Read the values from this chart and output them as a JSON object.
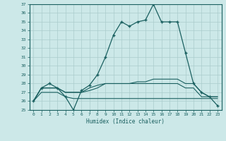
{
  "xlabel": "Humidex (Indice chaleur)",
  "bg_color": "#cce8e8",
  "grid_color": "#aacccc",
  "line_color": "#1a6060",
  "xlim": [
    -0.5,
    23.5
  ],
  "ylim": [
    25,
    37
  ],
  "xticks": [
    0,
    1,
    2,
    3,
    4,
    5,
    6,
    7,
    8,
    9,
    10,
    11,
    12,
    13,
    14,
    15,
    16,
    17,
    18,
    19,
    20,
    21,
    22,
    23
  ],
  "yticks": [
    25,
    26,
    27,
    28,
    29,
    30,
    31,
    32,
    33,
    34,
    35,
    36,
    37
  ],
  "series1": [
    26.0,
    27.5,
    28.0,
    27.5,
    26.5,
    25.0,
    27.2,
    27.8,
    29.0,
    31.0,
    33.5,
    35.0,
    34.5,
    35.0,
    35.2,
    37.0,
    35.0,
    35.0,
    35.0,
    31.5,
    28.0,
    27.0,
    26.5,
    25.5
  ],
  "series2": [
    26.0,
    27.5,
    27.5,
    27.5,
    27.0,
    27.0,
    27.0,
    27.5,
    27.8,
    28.0,
    28.0,
    28.0,
    28.0,
    28.2,
    28.2,
    28.5,
    28.5,
    28.5,
    28.5,
    28.0,
    28.0,
    27.0,
    26.5,
    26.5
  ],
  "series3": [
    26.0,
    27.0,
    27.0,
    27.0,
    26.5,
    26.3,
    26.3,
    26.3,
    26.3,
    26.3,
    26.3,
    26.3,
    26.3,
    26.3,
    26.3,
    26.3,
    26.3,
    26.3,
    26.3,
    26.3,
    26.3,
    26.3,
    26.3,
    26.3
  ],
  "series4": [
    26.0,
    27.5,
    27.5,
    27.5,
    27.0,
    27.0,
    27.0,
    27.2,
    27.5,
    28.0,
    28.0,
    28.0,
    28.0,
    28.0,
    28.0,
    28.0,
    28.0,
    28.0,
    28.0,
    27.5,
    27.5,
    26.5,
    26.5,
    26.5
  ]
}
